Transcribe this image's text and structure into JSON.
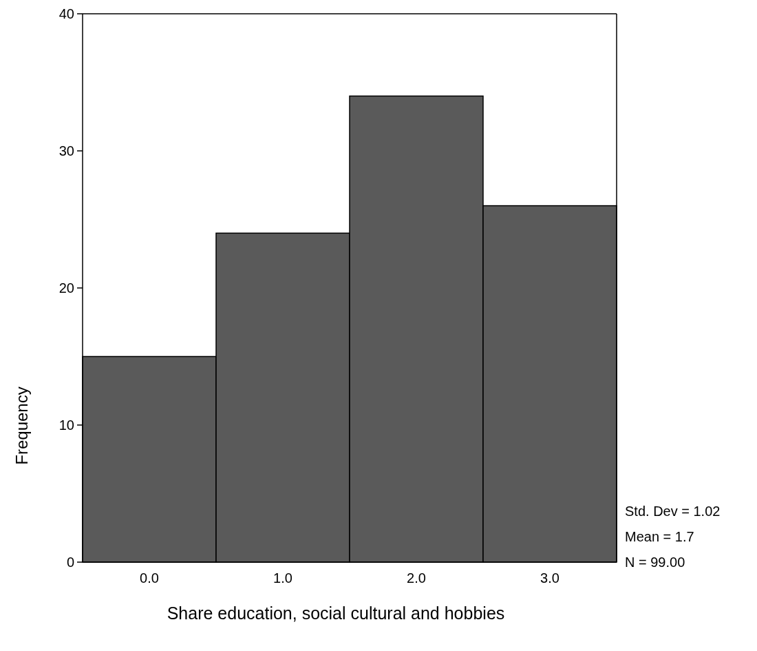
{
  "chart_data": {
    "type": "histogram",
    "xlabel": "Share education, social cultural and hobbies",
    "ylabel": "Frequency",
    "bins": [
      -0.5,
      0.5,
      1.5,
      2.5,
      3.5
    ],
    "values": [
      15,
      24,
      34,
      26
    ],
    "color": "#5a5a5a",
    "xlim": [
      -0.5,
      3.5
    ],
    "xticks": [
      {
        "value": 0,
        "label": "0.0"
      },
      {
        "value": 1,
        "label": "1.0"
      },
      {
        "value": 2,
        "label": "2.0"
      },
      {
        "value": 3,
        "label": "3.0"
      }
    ],
    "ylim": [
      0,
      40
    ],
    "yticks": [
      0,
      10,
      20,
      30,
      40
    ],
    "grid": false,
    "annotations": [
      "Std. Dev = 1.02",
      "Mean = 1.7",
      "N = 99.00"
    ]
  }
}
